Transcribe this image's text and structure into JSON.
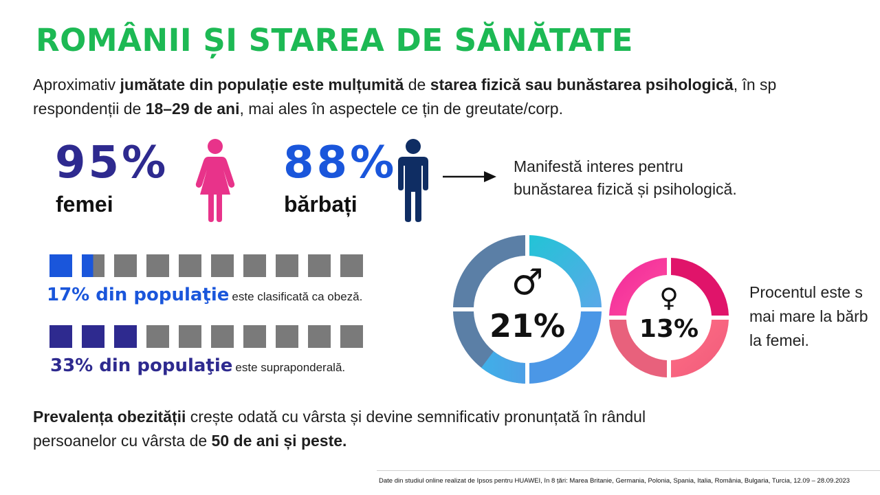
{
  "title": "ROMÂNII ȘI STAREA DE SĂNĂTATE",
  "intro": {
    "p1": "Aproximativ ",
    "b1": "jumătate din populație este mulțumită",
    "p2": "  de ",
    "b2": "starea fizică sau bunăstarea psihologică",
    "p3": ", în sp",
    "p4": "respondenții de ",
    "b3": "18–29 de ani",
    "p5": ", mai ales în aspectele ce țin de greutate/corp."
  },
  "women": {
    "percent": "95%",
    "label": "femei"
  },
  "men": {
    "percent": "88%",
    "label": "bărbați"
  },
  "interest": {
    "line1": "Manifestă interes pentru",
    "line2": "bunăstarea fizică și psihologică."
  },
  "obese": {
    "lead": "17% din populaţie",
    "rest": "este clasificată ca obeză.",
    "fraction": 0.17
  },
  "overweight": {
    "lead": "33% din populaţie",
    "rest": "este supraponderală.",
    "fraction": 0.33
  },
  "donut_men": {
    "symbol": "♂",
    "percent": "21%"
  },
  "donut_women": {
    "symbol": "♀",
    "percent": "13%"
  },
  "note": {
    "line1": "Procentul este s",
    "line2": "mai mare la bărb",
    "line3": "la femei."
  },
  "bottom": {
    "b1": "Prevalența obezității",
    "p1": " crește odată cu vârsta și devine semnificativ pronunțată în rândul",
    "p2": "persoanelor cu vârsta de ",
    "b2": "50 de ani și peste."
  },
  "footer": "Date din studiul online realizat de Ipsos pentru HUAWEI, în 8 țări: Marea Britanie, Germania, Polonia, Spania, Italia, România, Bulgaria, Turcia, 12.09 – 28.09.2023",
  "colors": {
    "green": "#1db954",
    "purple": "#2e2a8f",
    "blue": "#1a56db",
    "pink": "#e8338a",
    "navy": "#0f2d63"
  }
}
